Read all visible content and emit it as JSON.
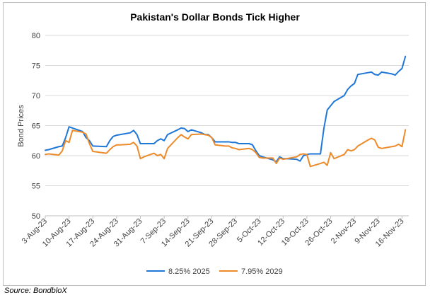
{
  "title": "Pakistan's Dollar Bonds Tick Higher",
  "source": "Source: BondbloX",
  "chart_data": {
    "type": "line",
    "title": "Pakistan's Dollar Bonds Tick Higher",
    "xlabel": "",
    "ylabel": "Bond Prices",
    "ylim": [
      50,
      80
    ],
    "yticks": [
      50,
      55,
      60,
      65,
      70,
      75,
      80
    ],
    "xlim": [
      "2023-08-03",
      "2023-11-18"
    ],
    "xticks": [
      "2023-08-03",
      "2023-08-10",
      "2023-08-17",
      "2023-08-24",
      "2023-08-31",
      "2023-09-07",
      "2023-09-14",
      "2023-09-21",
      "2023-09-28",
      "2023-10-05",
      "2023-10-12",
      "2023-10-19",
      "2023-10-26",
      "2023-11-02",
      "2023-11-09",
      "2023-11-16"
    ],
    "xtick_labels": [
      "3-Aug-23",
      "10-Aug-23",
      "17-Aug-23",
      "24-Aug-23",
      "31-Aug-23",
      "7-Sep-23",
      "14-Sep-23",
      "21-Sep-23",
      "28-Sep-23",
      "5-Oct-23",
      "12-Oct-23",
      "19-Oct-23",
      "26-Oct-23",
      "2-Nov-23",
      "9-Nov-23",
      "16-Nov-23"
    ],
    "grid": "horizontal",
    "legend": "bottom",
    "series": [
      {
        "name": "8.25% 2025",
        "color": "#1f77d8",
        "points": [
          [
            "2023-08-03",
            60.9
          ],
          [
            "2023-08-04",
            61.0
          ],
          [
            "2023-08-07",
            61.5
          ],
          [
            "2023-08-08",
            61.6
          ],
          [
            "2023-08-09",
            63.0
          ],
          [
            "2023-08-10",
            64.8
          ],
          [
            "2023-08-11",
            64.6
          ],
          [
            "2023-08-14",
            64.0
          ],
          [
            "2023-08-15",
            63.0
          ],
          [
            "2023-08-16",
            62.5
          ],
          [
            "2023-08-17",
            61.6
          ],
          [
            "2023-08-21",
            61.5
          ],
          [
            "2023-08-22",
            62.5
          ],
          [
            "2023-08-23",
            63.2
          ],
          [
            "2023-08-24",
            63.4
          ],
          [
            "2023-08-25",
            63.5
          ],
          [
            "2023-08-28",
            63.8
          ],
          [
            "2023-08-29",
            64.2
          ],
          [
            "2023-08-30",
            63.5
          ],
          [
            "2023-08-31",
            62.0
          ],
          [
            "2023-09-01",
            62.0
          ],
          [
            "2023-09-04",
            62.0
          ],
          [
            "2023-09-05",
            62.5
          ],
          [
            "2023-09-06",
            62.8
          ],
          [
            "2023-09-07",
            62.5
          ],
          [
            "2023-09-08",
            63.5
          ],
          [
            "2023-09-11",
            64.3
          ],
          [
            "2023-09-12",
            64.6
          ],
          [
            "2023-09-13",
            64.5
          ],
          [
            "2023-09-14",
            64.0
          ],
          [
            "2023-09-15",
            64.3
          ],
          [
            "2023-09-18",
            63.8
          ],
          [
            "2023-09-19",
            63.5
          ],
          [
            "2023-09-20",
            63.5
          ],
          [
            "2023-09-21",
            63.0
          ],
          [
            "2023-09-22",
            62.3
          ],
          [
            "2023-09-25",
            62.3
          ],
          [
            "2023-09-26",
            62.3
          ],
          [
            "2023-09-27",
            62.2
          ],
          [
            "2023-09-28",
            62.2
          ],
          [
            "2023-09-29",
            62.0
          ],
          [
            "2023-10-02",
            62.0
          ],
          [
            "2023-10-03",
            61.8
          ],
          [
            "2023-10-04",
            60.8
          ],
          [
            "2023-10-05",
            60.0
          ],
          [
            "2023-10-06",
            59.8
          ],
          [
            "2023-10-09",
            59.3
          ],
          [
            "2023-10-10",
            59.0
          ],
          [
            "2023-10-11",
            59.8
          ],
          [
            "2023-10-12",
            59.5
          ],
          [
            "2023-10-13",
            59.5
          ],
          [
            "2023-10-16",
            59.4
          ],
          [
            "2023-10-17",
            59.1
          ],
          [
            "2023-10-18",
            60.0
          ],
          [
            "2023-10-19",
            60.2
          ],
          [
            "2023-10-20",
            60.3
          ],
          [
            "2023-10-23",
            60.3
          ],
          [
            "2023-10-24",
            64.5
          ],
          [
            "2023-10-25",
            67.6
          ],
          [
            "2023-10-26",
            68.3
          ],
          [
            "2023-10-27",
            69.0
          ],
          [
            "2023-10-30",
            70.0
          ],
          [
            "2023-10-31",
            71.0
          ],
          [
            "2023-11-01",
            71.6
          ],
          [
            "2023-11-02",
            72.0
          ],
          [
            "2023-11-03",
            73.5
          ],
          [
            "2023-11-06",
            73.8
          ],
          [
            "2023-11-07",
            73.9
          ],
          [
            "2023-11-08",
            73.5
          ],
          [
            "2023-11-09",
            73.4
          ],
          [
            "2023-11-10",
            73.9
          ],
          [
            "2023-11-13",
            73.6
          ],
          [
            "2023-11-14",
            73.4
          ],
          [
            "2023-11-15",
            74.0
          ],
          [
            "2023-11-16",
            74.5
          ],
          [
            "2023-11-17",
            76.5
          ]
        ]
      },
      {
        "name": "7.95% 2029",
        "color": "#ed8b2a",
        "points": [
          [
            "2023-08-03",
            60.2
          ],
          [
            "2023-08-04",
            60.3
          ],
          [
            "2023-08-07",
            60.1
          ],
          [
            "2023-08-08",
            60.8
          ],
          [
            "2023-08-09",
            62.5
          ],
          [
            "2023-08-10",
            62.2
          ],
          [
            "2023-08-11",
            64.2
          ],
          [
            "2023-08-14",
            63.9
          ],
          [
            "2023-08-15",
            63.6
          ],
          [
            "2023-08-16",
            62.0
          ],
          [
            "2023-08-17",
            60.7
          ],
          [
            "2023-08-21",
            60.4
          ],
          [
            "2023-08-22",
            61.0
          ],
          [
            "2023-08-23",
            61.5
          ],
          [
            "2023-08-24",
            61.8
          ],
          [
            "2023-08-25",
            61.8
          ],
          [
            "2023-08-28",
            61.9
          ],
          [
            "2023-08-29",
            62.2
          ],
          [
            "2023-08-30",
            61.6
          ],
          [
            "2023-08-31",
            59.5
          ],
          [
            "2023-09-01",
            59.8
          ],
          [
            "2023-09-04",
            60.4
          ],
          [
            "2023-09-05",
            60.0
          ],
          [
            "2023-09-06",
            60.2
          ],
          [
            "2023-09-07",
            59.5
          ],
          [
            "2023-09-08",
            61.2
          ],
          [
            "2023-09-11",
            63.0
          ],
          [
            "2023-09-12",
            63.5
          ],
          [
            "2023-09-13",
            63.1
          ],
          [
            "2023-09-14",
            62.8
          ],
          [
            "2023-09-15",
            63.5
          ],
          [
            "2023-09-18",
            63.6
          ],
          [
            "2023-09-19",
            63.5
          ],
          [
            "2023-09-20",
            63.4
          ],
          [
            "2023-09-21",
            63.0
          ],
          [
            "2023-09-22",
            61.8
          ],
          [
            "2023-09-25",
            61.6
          ],
          [
            "2023-09-26",
            61.6
          ],
          [
            "2023-09-27",
            61.3
          ],
          [
            "2023-09-28",
            61.2
          ],
          [
            "2023-09-29",
            61.0
          ],
          [
            "2023-10-02",
            61.2
          ],
          [
            "2023-10-03",
            61.0
          ],
          [
            "2023-10-04",
            60.5
          ],
          [
            "2023-10-05",
            59.7
          ],
          [
            "2023-10-06",
            59.6
          ],
          [
            "2023-10-09",
            59.6
          ],
          [
            "2023-10-10",
            58.7
          ],
          [
            "2023-10-11",
            59.6
          ],
          [
            "2023-10-12",
            59.4
          ],
          [
            "2023-10-13",
            59.5
          ],
          [
            "2023-10-16",
            59.8
          ],
          [
            "2023-10-17",
            60.2
          ],
          [
            "2023-10-18",
            60.3
          ],
          [
            "2023-10-19",
            60.2
          ],
          [
            "2023-10-20",
            58.2
          ],
          [
            "2023-10-23",
            58.7
          ],
          [
            "2023-10-24",
            58.9
          ],
          [
            "2023-10-25",
            58.4
          ],
          [
            "2023-10-26",
            60.5
          ],
          [
            "2023-10-27",
            59.5
          ],
          [
            "2023-10-30",
            60.2
          ],
          [
            "2023-10-31",
            61.0
          ],
          [
            "2023-11-01",
            60.8
          ],
          [
            "2023-11-02",
            61.0
          ],
          [
            "2023-11-03",
            61.6
          ],
          [
            "2023-11-06",
            62.6
          ],
          [
            "2023-11-07",
            62.9
          ],
          [
            "2023-11-08",
            62.6
          ],
          [
            "2023-11-09",
            61.4
          ],
          [
            "2023-11-10",
            61.2
          ],
          [
            "2023-11-13",
            61.5
          ],
          [
            "2023-11-14",
            61.6
          ],
          [
            "2023-11-15",
            61.9
          ],
          [
            "2023-11-16",
            61.5
          ],
          [
            "2023-11-17",
            64.3
          ]
        ]
      }
    ]
  }
}
